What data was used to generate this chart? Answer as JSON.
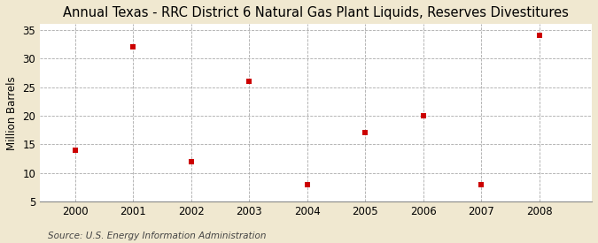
{
  "title": "Annual Texas - RRC District 6 Natural Gas Plant Liquids, Reserves Divestitures",
  "ylabel": "Million Barrels",
  "source": "Source: U.S. Energy Information Administration",
  "figure_background": "#f0e8d0",
  "plot_background": "#ffffff",
  "years": [
    2000,
    2001,
    2002,
    2003,
    2004,
    2005,
    2006,
    2007,
    2008
  ],
  "values": [
    14,
    32,
    12,
    26,
    8,
    17,
    20,
    8,
    34
  ],
  "marker_color": "#cc0000",
  "marker_size": 4,
  "xlim": [
    1999.4,
    2008.9
  ],
  "ylim": [
    5,
    36
  ],
  "yticks": [
    5,
    10,
    15,
    20,
    25,
    30,
    35
  ],
  "xticks": [
    2000,
    2001,
    2002,
    2003,
    2004,
    2005,
    2006,
    2007,
    2008
  ],
  "grid_color": "#aaaaaa",
  "title_fontsize": 10.5,
  "axis_fontsize": 8.5,
  "source_fontsize": 7.5
}
